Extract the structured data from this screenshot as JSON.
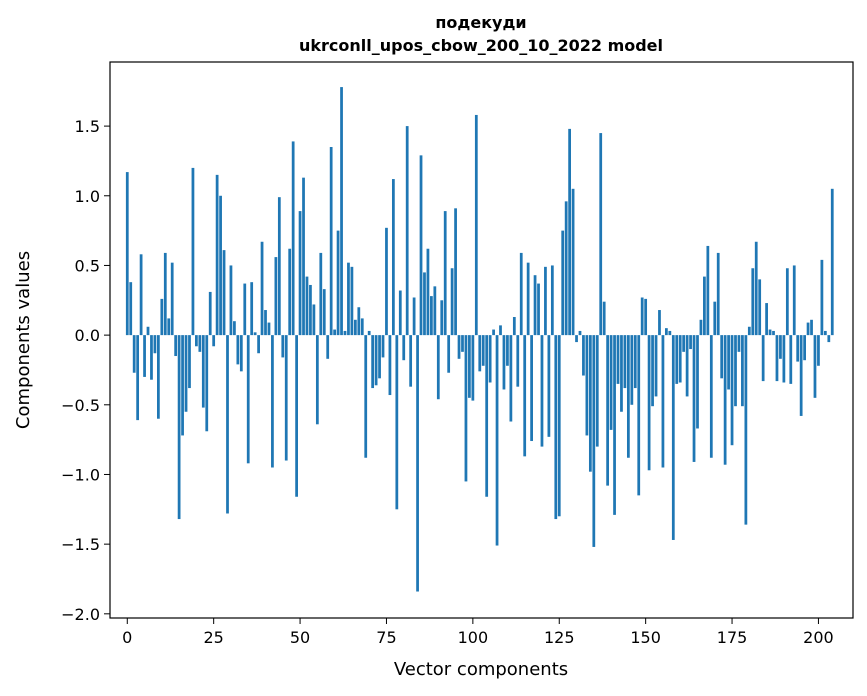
{
  "chart_data": {
    "type": "bar",
    "title_line1": "подекуди",
    "title_line2": "ukrconll_upos_cbow_200_10_2022 model",
    "xlabel": "Vector components",
    "ylabel": "Components values",
    "xlim": [
      -5,
      210
    ],
    "ylim": [
      -2.03,
      1.96
    ],
    "xticks": [
      0,
      25,
      50,
      75,
      100,
      125,
      150,
      175,
      200
    ],
    "yticks": [
      -2.0,
      -1.5,
      -1.0,
      -0.5,
      0.0,
      0.5,
      1.0,
      1.5
    ],
    "ytick_labels": [
      "−2.0",
      "−1.5",
      "−1.0",
      "−0.5",
      "0.0",
      "0.5",
      "1.0",
      "1.5"
    ],
    "bar_color": "#1f77b4",
    "values": [
      1.17,
      0.38,
      -0.27,
      -0.61,
      0.58,
      -0.3,
      0.06,
      -0.32,
      -0.13,
      -0.6,
      0.26,
      0.59,
      0.12,
      0.52,
      -0.15,
      -1.32,
      -0.72,
      -0.55,
      -0.38,
      1.2,
      -0.08,
      -0.12,
      -0.52,
      -0.69,
      0.31,
      -0.08,
      1.15,
      1.0,
      0.61,
      -1.28,
      0.5,
      0.1,
      -0.21,
      -0.26,
      0.37,
      -0.92,
      0.38,
      0.02,
      -0.13,
      0.67,
      0.18,
      0.09,
      -0.95,
      0.56,
      0.99,
      -0.16,
      -0.9,
      0.62,
      1.39,
      -1.16,
      0.89,
      1.13,
      0.42,
      0.36,
      0.22,
      -0.64,
      0.59,
      0.33,
      -0.17,
      1.35,
      0.04,
      0.75,
      1.78,
      0.03,
      0.52,
      0.49,
      0.11,
      0.2,
      0.12,
      -0.88,
      0.03,
      -0.38,
      -0.36,
      -0.31,
      -0.16,
      0.77,
      -0.43,
      1.12,
      -1.25,
      0.32,
      -0.18,
      1.5,
      -0.37,
      0.27,
      -1.84,
      1.29,
      0.45,
      0.62,
      0.28,
      0.35,
      -0.46,
      0.25,
      0.89,
      -0.27,
      0.48,
      0.91,
      -0.17,
      -0.12,
      -1.05,
      -0.45,
      -0.47,
      1.58,
      -0.26,
      -0.22,
      -1.16,
      -0.34,
      0.04,
      -1.51,
      0.07,
      -0.39,
      -0.22,
      -0.62,
      0.13,
      -0.37,
      0.59,
      -0.87,
      0.52,
      -0.76,
      0.43,
      0.37,
      -0.8,
      0.49,
      -0.73,
      0.5,
      -1.32,
      -1.3,
      0.75,
      0.96,
      1.48,
      1.05,
      -0.05,
      0.03,
      -0.29,
      -0.72,
      -0.98,
      -1.52,
      -0.8,
      1.45,
      0.24,
      -1.08,
      -0.68,
      -1.29,
      -0.35,
      -0.55,
      -0.38,
      -0.88,
      -0.5,
      -0.38,
      -1.15,
      0.27,
      0.26,
      -0.97,
      -0.51,
      -0.44,
      0.18,
      -0.95,
      0.05,
      0.03,
      -1.47,
      -0.35,
      -0.34,
      -0.12,
      -0.44,
      -0.1,
      -0.91,
      -0.67,
      0.11,
      0.42,
      0.64,
      -0.88,
      0.24,
      0.59,
      -0.31,
      -0.93,
      -0.39,
      -0.79,
      -0.51,
      -0.12,
      -0.51,
      -1.36,
      0.06,
      0.48,
      0.67,
      0.4,
      -0.33,
      0.23,
      0.04,
      0.03,
      -0.33,
      -0.17,
      -0.34,
      0.48,
      -0.35,
      0.5,
      -0.19,
      -0.58,
      -0.18,
      0.09,
      0.11,
      -0.45,
      -0.22,
      0.54,
      0.03,
      -0.05,
      1.05
    ]
  }
}
